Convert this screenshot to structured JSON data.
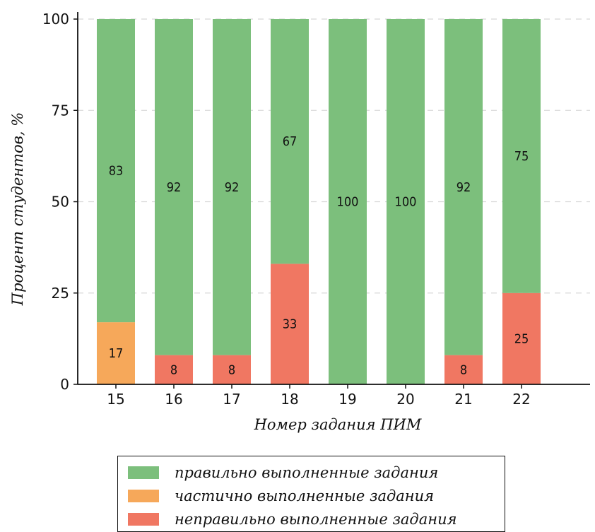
{
  "colors": {
    "correct": "#7cbf7c",
    "partial": "#f6a85a",
    "incorrect": "#f07762",
    "axis": "#111111",
    "grid": "#d8d8d8"
  },
  "legend": {
    "items": [
      {
        "key": "correct",
        "label": "правильно выполненные задания"
      },
      {
        "key": "partial",
        "label": "частично выполненные задания"
      },
      {
        "key": "incorrect",
        "label": "неправильно выполненные задания"
      }
    ]
  },
  "chart_data": {
    "type": "bar",
    "stacked": true,
    "title": "",
    "xlabel": "Номер задания ПИМ",
    "ylabel": "Процент студентов, %",
    "categories": [
      "15",
      "16",
      "17",
      "18",
      "19",
      "20",
      "21",
      "22"
    ],
    "ylim": [
      0,
      100
    ],
    "yticks": [
      0,
      25,
      50,
      75,
      100
    ],
    "grid": "horizontal dashed",
    "legend_position": "bottom",
    "series": [
      {
        "key": "incorrect",
        "name": "неправильно выполненные задания",
        "values": [
          0,
          8,
          8,
          33,
          0,
          0,
          8,
          25
        ]
      },
      {
        "key": "partial",
        "name": "частично выполненные задания",
        "values": [
          17,
          0,
          0,
          0,
          0,
          0,
          0,
          0
        ]
      },
      {
        "key": "correct",
        "name": "правильно выполненные задания",
        "values": [
          83,
          92,
          92,
          67,
          100,
          100,
          92,
          75
        ]
      }
    ]
  }
}
